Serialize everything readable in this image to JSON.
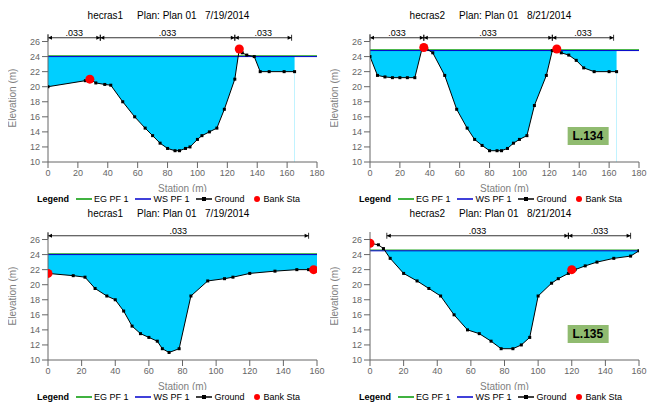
{
  "chart_data": [
    {
      "type": "line",
      "title": "hecras1     Plan: Plan 01   7/19/2014",
      "x_label": "Station (m)",
      "y_label": "Elevation (m)",
      "xlim": [
        0,
        180
      ],
      "ylim": [
        10,
        27
      ],
      "xticks": [
        0,
        20,
        40,
        60,
        80,
        100,
        120,
        140,
        160,
        180
      ],
      "yticks": [
        10,
        12,
        14,
        16,
        18,
        20,
        22,
        24,
        26
      ],
      "legend": "bottom",
      "legend_title": "Legend",
      "series": [
        {
          "type": "area",
          "color": "#00CFFF",
          "x": [
            0,
            165
          ],
          "values": [
            24.0,
            24.0
          ]
        },
        {
          "name": "EG PF 1",
          "type": "line",
          "color": "#009900",
          "x": [
            0,
            180
          ],
          "values": [
            24.1,
            24.1
          ]
        },
        {
          "name": "WS PF 1",
          "type": "line",
          "color": "#0000CC",
          "x": [
            0,
            180
          ],
          "values": [
            24.0,
            24.0
          ]
        },
        {
          "name": "Ground",
          "type": "line",
          "color": "#000000",
          "marker": "square",
          "x": [
            0,
            25,
            28,
            32,
            38,
            42,
            50,
            58,
            65,
            70,
            75,
            80,
            85,
            88,
            92,
            95,
            100,
            103,
            108,
            113,
            118,
            125,
            128,
            130,
            133,
            138,
            142,
            148,
            158,
            165
          ],
          "values": [
            20.0,
            20.8,
            21.0,
            20.5,
            20.3,
            20.2,
            18.0,
            16.0,
            14.5,
            13.5,
            12.5,
            11.8,
            11.5,
            11.5,
            11.8,
            12.0,
            13.0,
            13.5,
            14.0,
            14.5,
            17.0,
            21.0,
            25.0,
            24.5,
            24.2,
            24.0,
            22.0,
            22.0,
            22.0,
            22.0
          ]
        },
        {
          "name": "Bank Sta",
          "type": "scatter",
          "color": "#FF0000",
          "marker": "circle",
          "x": [
            28,
            128
          ],
          "values": [
            21.0,
            25.0
          ]
        }
      ],
      "annotations": [
        {
          "type": "arrow",
          "text": ".033",
          "x_start": 0,
          "x_end": 35,
          "y": 26.5
        },
        {
          "type": "arrow",
          "text": ".033",
          "x_start": 35,
          "x_end": 125,
          "y": 26.5
        },
        {
          "type": "arrow",
          "text": ".033",
          "x_start": 125,
          "x_end": 163,
          "y": 26.5
        }
      ]
    },
    {
      "type": "line",
      "title": "hecras2     Plan: Plan 01   8/21/2014",
      "x_label": "Station (m)",
      "y_label": "Elevation (m)",
      "xlim": [
        0,
        180
      ],
      "ylim": [
        10,
        27
      ],
      "xticks": [
        0,
        20,
        40,
        60,
        80,
        100,
        120,
        140,
        160,
        180
      ],
      "yticks": [
        10,
        12,
        14,
        16,
        18,
        20,
        22,
        24,
        26
      ],
      "legend": "bottom",
      "legend_title": "Legend",
      "series": [
        {
          "type": "area",
          "color": "#00CFFF",
          "x": [
            0,
            165
          ],
          "values": [
            24.8,
            24.8
          ]
        },
        {
          "name": "EG PF 1",
          "type": "line",
          "color": "#009900",
          "x": [
            0,
            180
          ],
          "values": [
            24.9,
            24.9
          ]
        },
        {
          "name": "WS PF 1",
          "type": "line",
          "color": "#0000CC",
          "x": [
            0,
            180
          ],
          "values": [
            24.8,
            24.8
          ]
        },
        {
          "name": "Ground",
          "type": "line",
          "color": "#000000",
          "marker": "square",
          "x": [
            0,
            5,
            10,
            15,
            20,
            25,
            30,
            35,
            38,
            42,
            50,
            58,
            65,
            70,
            75,
            80,
            85,
            88,
            92,
            96,
            100,
            105,
            110,
            118,
            122,
            125,
            128,
            133,
            138,
            143,
            150,
            160,
            165
          ],
          "values": [
            24.0,
            21.5,
            21.3,
            21.2,
            21.2,
            21.2,
            21.2,
            25.2,
            25.0,
            24.5,
            21.5,
            17.0,
            14.5,
            13.0,
            12.2,
            11.5,
            11.5,
            11.5,
            11.8,
            12.5,
            13.0,
            13.5,
            17.5,
            21.5,
            24.8,
            25.0,
            24.5,
            24.2,
            23.5,
            22.5,
            22.0,
            22.0,
            22.0
          ]
        },
        {
          "name": "Bank Sta",
          "type": "scatter",
          "color": "#FF0000",
          "marker": "circle",
          "x": [
            36,
            125
          ],
          "values": [
            25.2,
            25.0
          ]
        }
      ],
      "annotations": [
        {
          "type": "arrow",
          "text": ".033",
          "x_start": 0,
          "x_end": 36,
          "y": 26.5
        },
        {
          "type": "arrow",
          "text": ".033",
          "x_start": 36,
          "x_end": 122,
          "y": 26.5
        },
        {
          "type": "arrow",
          "text": ".033",
          "x_start": 122,
          "x_end": 163,
          "y": 26.5
        },
        {
          "type": "box",
          "text": "L.134",
          "color": "#90BB70"
        }
      ]
    },
    {
      "type": "line",
      "title": "hecras1     Plan: Plan 01   7/19/2014",
      "x_label": "Station (m)",
      "y_label": "Elevation (m)",
      "xlim": [
        0,
        160
      ],
      "ylim": [
        10,
        27
      ],
      "xticks": [
        0,
        20,
        40,
        60,
        80,
        100,
        120,
        140,
        160
      ],
      "yticks": [
        10,
        12,
        14,
        16,
        18,
        20,
        22,
        24,
        26
      ],
      "legend": "bottom",
      "legend_title": "Legend",
      "series": [
        {
          "type": "area",
          "color": "#00CFFF",
          "x": [
            0,
            160
          ],
          "values": [
            24.0,
            24.0
          ]
        },
        {
          "name": "EG PF 1",
          "type": "line",
          "color": "#009900",
          "x": [
            0,
            160
          ],
          "values": [
            24.1,
            24.1
          ]
        },
        {
          "name": "WS PF 1",
          "type": "line",
          "color": "#0000CC",
          "x": [
            0,
            160
          ],
          "values": [
            24.0,
            24.0
          ]
        },
        {
          "name": "Ground",
          "type": "line",
          "color": "#000000",
          "marker": "square",
          "x": [
            0,
            15,
            22,
            28,
            35,
            40,
            45,
            50,
            55,
            60,
            65,
            68,
            72,
            78,
            85,
            95,
            105,
            110,
            120,
            135,
            148,
            155,
            160
          ],
          "values": [
            21.5,
            21.2,
            21.0,
            19.5,
            18.5,
            18.0,
            16.5,
            14.5,
            13.5,
            13.0,
            12.5,
            11.5,
            11.0,
            11.5,
            18.5,
            20.5,
            20.8,
            21.0,
            21.5,
            21.8,
            22.0,
            22.0,
            22.0
          ]
        },
        {
          "name": "Bank Sta",
          "type": "scatter",
          "color": "#FF0000",
          "marker": "circle",
          "x": [
            0,
            158
          ],
          "values": [
            21.5,
            22.0
          ]
        }
      ],
      "annotations": [
        {
          "type": "arrow",
          "text": ".033",
          "x_start": 0,
          "x_end": 155,
          "y": 26.5
        }
      ]
    },
    {
      "type": "line",
      "title": "hecras2     Plan: Plan 01   8/21/2014",
      "x_label": "Station (m)",
      "y_label": "Elevation (m)",
      "xlim": [
        0,
        160
      ],
      "ylim": [
        10,
        27
      ],
      "xticks": [
        0,
        20,
        40,
        60,
        80,
        100,
        120,
        140,
        160
      ],
      "yticks": [
        10,
        12,
        14,
        16,
        18,
        20,
        22,
        24,
        26
      ],
      "legend": "bottom",
      "legend_title": "Legend",
      "series": [
        {
          "type": "area",
          "color": "#00CFFF",
          "x": [
            0,
            160
          ],
          "values": [
            24.5,
            24.5
          ]
        },
        {
          "name": "EG PF 1",
          "type": "line",
          "color": "#009900",
          "x": [
            0,
            160
          ],
          "values": [
            24.6,
            24.6
          ]
        },
        {
          "name": "WS PF 1",
          "type": "line",
          "color": "#0000CC",
          "x": [
            0,
            160
          ],
          "values": [
            24.5,
            24.5
          ]
        },
        {
          "name": "Ground",
          "type": "line",
          "color": "#000000",
          "marker": "square",
          "x": [
            0,
            5,
            8,
            12,
            20,
            28,
            35,
            42,
            50,
            58,
            65,
            72,
            78,
            85,
            90,
            95,
            100,
            108,
            112,
            118,
            122,
            128,
            135,
            145,
            155,
            160
          ],
          "values": [
            25.5,
            25.3,
            24.8,
            23.5,
            21.5,
            20.5,
            19.5,
            18.5,
            16.0,
            14.0,
            13.5,
            12.5,
            11.5,
            11.5,
            12.0,
            13.0,
            18.5,
            20.2,
            20.8,
            21.5,
            22.0,
            22.5,
            23.0,
            23.5,
            23.8,
            24.5
          ]
        },
        {
          "name": "Bank Sta",
          "type": "scatter",
          "color": "#FF0000",
          "marker": "circle",
          "x": [
            0,
            120
          ],
          "values": [
            25.5,
            22.0
          ]
        }
      ],
      "annotations": [
        {
          "type": "arrow",
          "text": ".033",
          "x_start": 10,
          "x_end": 118,
          "y": 26.5
        },
        {
          "type": "arrow",
          "text": ".033",
          "x_start": 118,
          "x_end": 155,
          "y": 26.5
        },
        {
          "type": "box",
          "text": "L.135",
          "color": "#90BB70"
        }
      ]
    }
  ]
}
